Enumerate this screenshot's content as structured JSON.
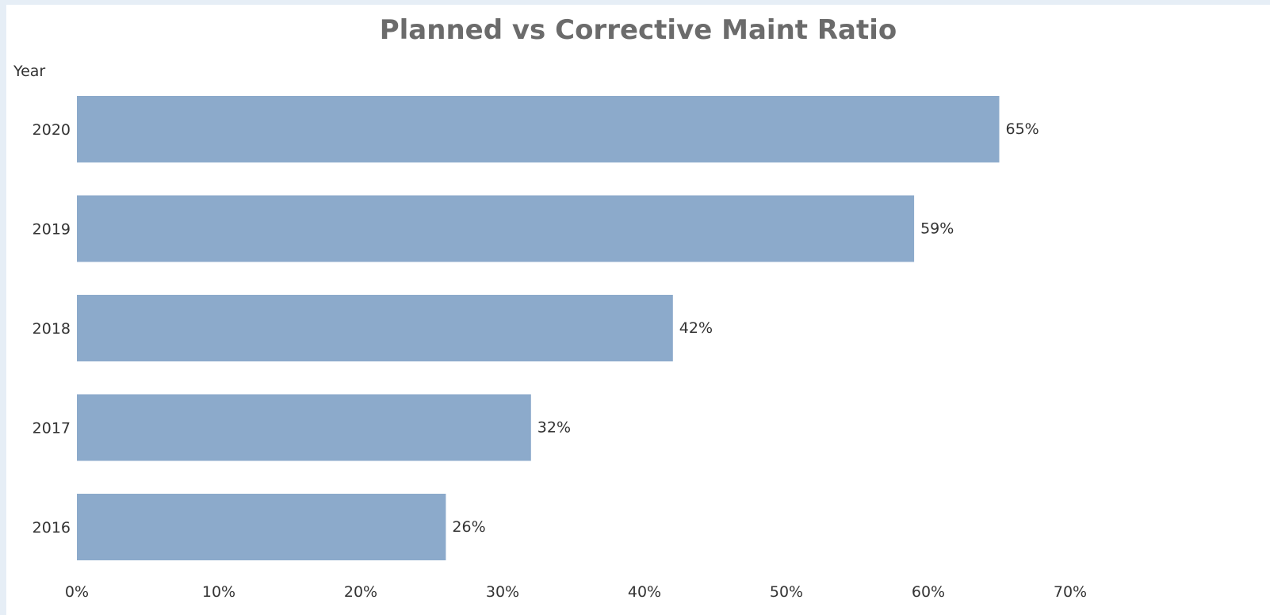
{
  "chart_data": {
    "type": "bar",
    "orientation": "horizontal",
    "title": "Planned vs Corrective Maint Ratio",
    "ylabel": "Year",
    "xlabel": "",
    "categories": [
      "2020",
      "2019",
      "2018",
      "2017",
      "2016"
    ],
    "values": [
      0.65,
      0.59,
      0.42,
      0.32,
      0.26
    ],
    "data_labels": [
      "65%",
      "59%",
      "42%",
      "32%",
      "26%"
    ],
    "x_ticks": [
      0,
      0.1,
      0.2,
      0.3,
      0.4,
      0.5,
      0.6,
      0.7
    ],
    "x_tick_labels": [
      "0%",
      "10%",
      "20%",
      "30%",
      "40%",
      "50%",
      "60%",
      "70%"
    ],
    "xlim": [
      0,
      0.7
    ],
    "grid": false,
    "legend": "none",
    "bar_color": "#8caacb"
  }
}
